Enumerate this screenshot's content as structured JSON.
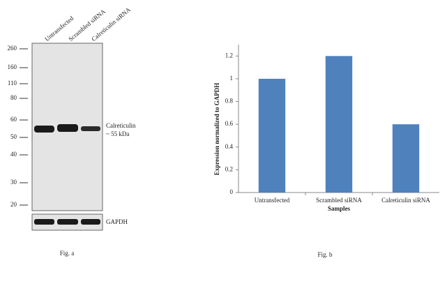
{
  "blot": {
    "lanes": [
      "Untransfected",
      "Scrambled siRNA",
      "Calreticulin siRNA"
    ],
    "markers": [
      "260",
      "160",
      "110",
      "80",
      "60",
      "50",
      "40",
      "30",
      "20"
    ],
    "band_label": "Calreticulin",
    "band_size": "~ 55 kDa",
    "loading_label": "GAPDH",
    "caption": "Fig. a"
  },
  "chart_data": {
    "type": "bar",
    "categories": [
      "Untransfected",
      "Scrambled siRNA",
      "Calreticulin siRNA"
    ],
    "values": [
      1,
      1.2,
      0.6
    ],
    "color": "#4f81bd",
    "ylim": [
      0,
      1.3
    ],
    "yticks": [
      0,
      0.2,
      0.4,
      0.6,
      0.8,
      1,
      1.2
    ],
    "xlabel": "Samples",
    "ylabel": "Expression  normalized to GAPDH",
    "caption": "Fig. b"
  }
}
